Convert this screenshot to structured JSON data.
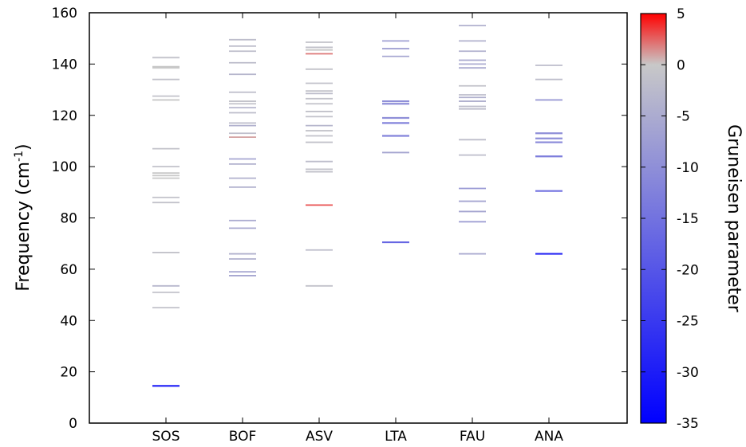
{
  "chart_data": {
    "type": "scatter",
    "title": "",
    "ylabel": "Frequency (cm",
    "ylabel_superscript": "-1",
    "ylabel_suffix": ")",
    "ylim": [
      0,
      160
    ],
    "yticks": [
      0,
      20,
      40,
      60,
      80,
      100,
      120,
      140,
      160
    ],
    "categories": [
      "SOS",
      "BOF",
      "ASV",
      "LTA",
      "FAU",
      "ANA"
    ],
    "marker": "horizontal-dash",
    "grid": false,
    "colorbar": {
      "label": "Gruneisen parameter",
      "range": [
        -35,
        5
      ],
      "ticks": [
        5,
        0,
        -5,
        -10,
        -15,
        -20,
        -25,
        -30,
        -35
      ],
      "colors": {
        "min": "#0000ff",
        "mid": "#c8c8c8",
        "max": "#ff0000"
      }
    },
    "series": [
      {
        "category": "SOS",
        "points": [
          {
            "freq": 14.5,
            "g": -30
          },
          {
            "freq": 45,
            "g": -1
          },
          {
            "freq": 51,
            "g": -1
          },
          {
            "freq": 53.5,
            "g": -3
          },
          {
            "freq": 66.5,
            "g": -1
          },
          {
            "freq": 86,
            "g": -1
          },
          {
            "freq": 88,
            "g": -1
          },
          {
            "freq": 95.5,
            "g": 0
          },
          {
            "freq": 96.5,
            "g": 0
          },
          {
            "freq": 97.5,
            "g": 0
          },
          {
            "freq": 100,
            "g": -1
          },
          {
            "freq": 107,
            "g": -1
          },
          {
            "freq": 126,
            "g": 0
          },
          {
            "freq": 127.5,
            "g": -1
          },
          {
            "freq": 134,
            "g": -1
          },
          {
            "freq": 138.5,
            "g": 0
          },
          {
            "freq": 139,
            "g": 0
          },
          {
            "freq": 142.5,
            "g": -1
          }
        ]
      },
      {
        "category": "BOF",
        "points": [
          {
            "freq": 57.5,
            "g": -6
          },
          {
            "freq": 59,
            "g": -6
          },
          {
            "freq": 64,
            "g": -4
          },
          {
            "freq": 66,
            "g": -4
          },
          {
            "freq": 76,
            "g": -5
          },
          {
            "freq": 79,
            "g": -5
          },
          {
            "freq": 92,
            "g": -4
          },
          {
            "freq": 95.5,
            "g": -4
          },
          {
            "freq": 101,
            "g": -4
          },
          {
            "freq": 103,
            "g": -6
          },
          {
            "freq": 111.5,
            "g": 1
          },
          {
            "freq": 113,
            "g": -2
          },
          {
            "freq": 116,
            "g": -4
          },
          {
            "freq": 117,
            "g": -2
          },
          {
            "freq": 121,
            "g": -2
          },
          {
            "freq": 123,
            "g": -3
          },
          {
            "freq": 124.5,
            "g": -1
          },
          {
            "freq": 125.5,
            "g": -1
          },
          {
            "freq": 129,
            "g": -2
          },
          {
            "freq": 136,
            "g": -3
          },
          {
            "freq": 140.5,
            "g": -2
          },
          {
            "freq": 145,
            "g": -2
          },
          {
            "freq": 147,
            "g": -2
          },
          {
            "freq": 149.5,
            "g": -2
          }
        ]
      },
      {
        "category": "ASV",
        "points": [
          {
            "freq": 53.5,
            "g": -1
          },
          {
            "freq": 67.5,
            "g": -2
          },
          {
            "freq": 85,
            "g": 3
          },
          {
            "freq": 98,
            "g": -1
          },
          {
            "freq": 99,
            "g": -1
          },
          {
            "freq": 102,
            "g": -2
          },
          {
            "freq": 109.5,
            "g": -1
          },
          {
            "freq": 112,
            "g": -1
          },
          {
            "freq": 114,
            "g": -1
          },
          {
            "freq": 116,
            "g": -3
          },
          {
            "freq": 119.5,
            "g": -1
          },
          {
            "freq": 121.5,
            "g": -1
          },
          {
            "freq": 124.5,
            "g": -1
          },
          {
            "freq": 126.5,
            "g": -1
          },
          {
            "freq": 128.5,
            "g": -2
          },
          {
            "freq": 129.5,
            "g": -1
          },
          {
            "freq": 132.5,
            "g": -1
          },
          {
            "freq": 138,
            "g": -1
          },
          {
            "freq": 144,
            "g": 2
          },
          {
            "freq": 145.5,
            "g": 0
          },
          {
            "freq": 146.5,
            "g": -1
          },
          {
            "freq": 148.5,
            "g": -1
          }
        ]
      },
      {
        "category": "LTA",
        "points": [
          {
            "freq": 70.5,
            "g": -17
          },
          {
            "freq": 105.5,
            "g": -6
          },
          {
            "freq": 112,
            "g": -12
          },
          {
            "freq": 117,
            "g": -12
          },
          {
            "freq": 119,
            "g": -10
          },
          {
            "freq": 124.5,
            "g": -10
          },
          {
            "freq": 125.5,
            "g": -10
          },
          {
            "freq": 143,
            "g": -6
          },
          {
            "freq": 146,
            "g": -7
          },
          {
            "freq": 149,
            "g": -7
          }
        ]
      },
      {
        "category": "FAU",
        "points": [
          {
            "freq": 66,
            "g": -5
          },
          {
            "freq": 78.5,
            "g": -7
          },
          {
            "freq": 82.5,
            "g": -6
          },
          {
            "freq": 86.5,
            "g": -6
          },
          {
            "freq": 91.5,
            "g": -8
          },
          {
            "freq": 104.5,
            "g": -2
          },
          {
            "freq": 110.5,
            "g": -2
          },
          {
            "freq": 122.5,
            "g": -2
          },
          {
            "freq": 123.5,
            "g": -2
          },
          {
            "freq": 125.5,
            "g": -4
          },
          {
            "freq": 127,
            "g": -4
          },
          {
            "freq": 128,
            "g": -2
          },
          {
            "freq": 131.5,
            "g": -1
          },
          {
            "freq": 138.5,
            "g": -5
          },
          {
            "freq": 140,
            "g": -5
          },
          {
            "freq": 141.5,
            "g": -5
          },
          {
            "freq": 145,
            "g": -4
          },
          {
            "freq": 149,
            "g": -4
          },
          {
            "freq": 155,
            "g": -4
          }
        ]
      },
      {
        "category": "ANA",
        "points": [
          {
            "freq": 66,
            "g": -28
          },
          {
            "freq": 90.5,
            "g": -15
          },
          {
            "freq": 104,
            "g": -13
          },
          {
            "freq": 109.5,
            "g": -11
          },
          {
            "freq": 111,
            "g": -10
          },
          {
            "freq": 113,
            "g": -10
          },
          {
            "freq": 126,
            "g": -8
          },
          {
            "freq": 134,
            "g": -2
          },
          {
            "freq": 139.5,
            "g": -2
          }
        ]
      }
    ]
  }
}
